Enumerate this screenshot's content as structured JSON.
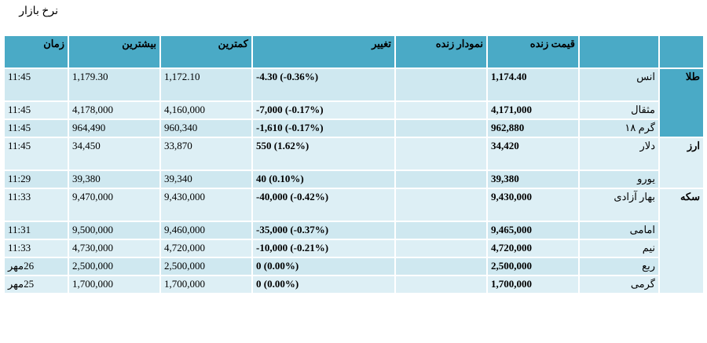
{
  "title": "نرخ بازار",
  "columns": {
    "category": "",
    "item": "",
    "live_price": "قیمت زنده",
    "live_chart": "نمودار زنده",
    "change": "تغییر",
    "min": "کمترین",
    "max": "بیشترین",
    "time": "زمان"
  },
  "groups": [
    {
      "name": "طلا",
      "rows": [
        {
          "item": "انس",
          "price": "1,174.40",
          "change": "-4.30 (-0.36%)",
          "min": "1,172.10",
          "max": "1,179.30",
          "time": "11:45"
        },
        {
          "item": "مثقال",
          "price": "4,171,000",
          "change": "-7,000 (-0.17%)",
          "min": "4,160,000",
          "max": "4,178,000",
          "time": "11:45"
        },
        {
          "item": "گرم ۱۸",
          "price": "962,880",
          "change": "-1,610 (-0.17%)",
          "min": "960,340",
          "max": "964,490",
          "time": "11:45"
        }
      ]
    },
    {
      "name": "ارز",
      "rows": [
        {
          "item": "دلار",
          "price": "34,420",
          "change": "550 (1.62%)",
          "min": "33,870",
          "max": "34,450",
          "time": "11:45"
        },
        {
          "item": "یورو",
          "price": "39,380",
          "change": "40 (0.10%)",
          "min": "39,340",
          "max": "39,380",
          "time": "11:29"
        }
      ]
    },
    {
      "name": "سکه",
      "rows": [
        {
          "item": "بهار آزادی",
          "price": "9,430,000",
          "change": "-40,000 (-0.42%)",
          "min": "9,430,000",
          "max": "9,470,000",
          "time": "11:33"
        },
        {
          "item": "امامی",
          "price": "9,465,000",
          "change": "-35,000 (-0.37%)",
          "min": "9,460,000",
          "max": "9,500,000",
          "time": "11:31"
        },
        {
          "item": "نیم",
          "price": "4,720,000",
          "change": "-10,000 (-0.21%)",
          "min": "4,720,000",
          "max": "4,730,000",
          "time": "11:33"
        },
        {
          "item": "ربع",
          "price": "2,500,000",
          "change": "0 (0.00%)",
          "min": "2,500,000",
          "max": "2,500,000",
          "time": "26مهر"
        },
        {
          "item": "گرمی",
          "price": "1,700,000",
          "change": "0 (0.00%)",
          "min": "1,700,000",
          "max": "1,700,000",
          "time": "25مهر"
        }
      ]
    }
  ]
}
